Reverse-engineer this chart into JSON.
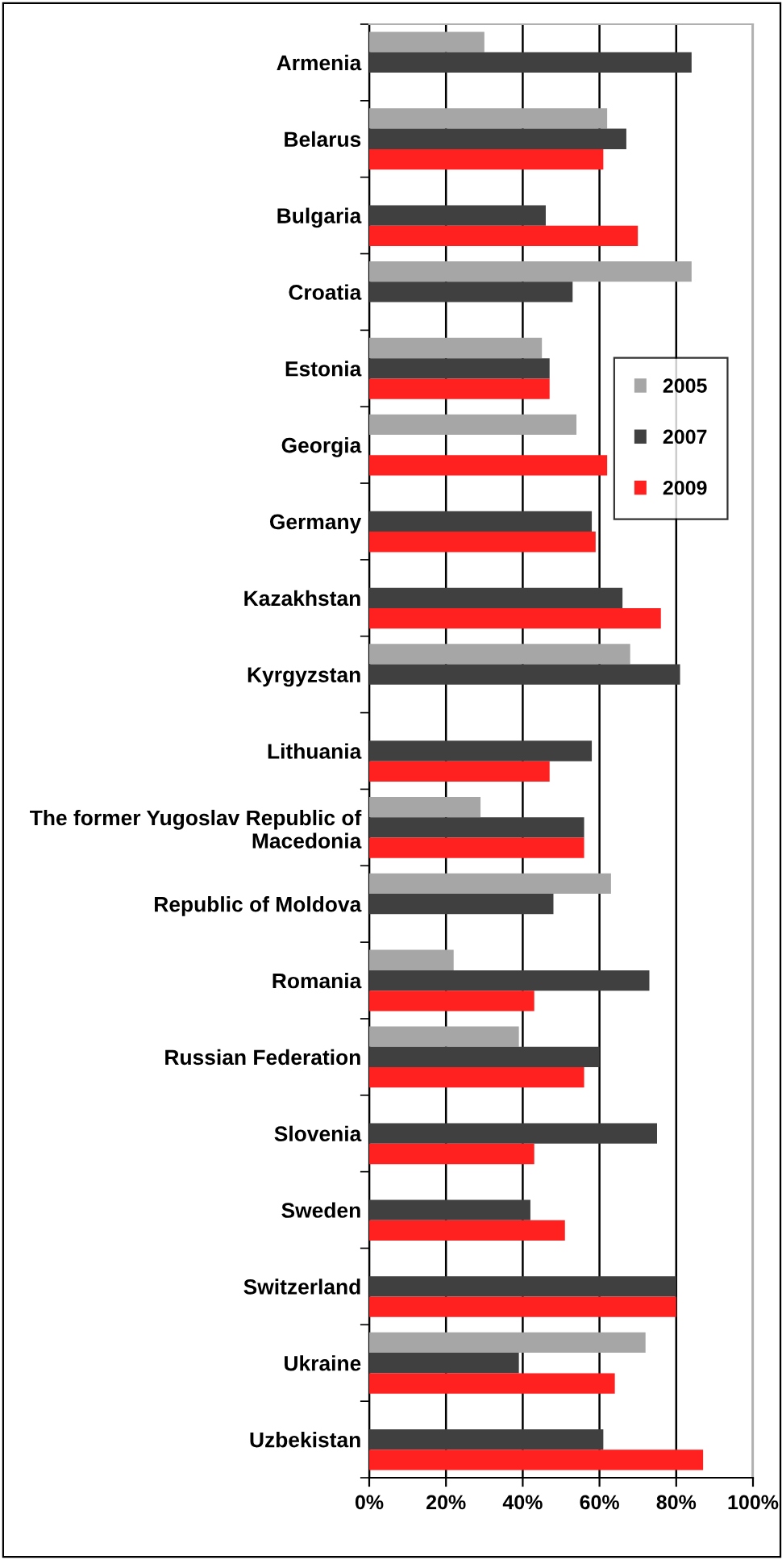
{
  "chart_data": {
    "type": "bar",
    "orientation": "horizontal",
    "categories": [
      "Armenia",
      "Belarus",
      "Bulgaria",
      "Croatia",
      "Estonia",
      "Georgia",
      "Germany",
      "Kazakhstan",
      "Kyrgyzstan",
      "Lithuania",
      "The former Yugoslav Republic of\nMacedonia",
      "Republic of Moldova",
      "Romania",
      "Russian Federation",
      "Slovenia",
      "Sweden",
      "Switzerland",
      "Ukraine",
      "Uzbekistan"
    ],
    "series": [
      {
        "name": "2005",
        "color": "#a6a6a6",
        "values": [
          30,
          62,
          null,
          84,
          45,
          54,
          null,
          null,
          68,
          null,
          29,
          63,
          22,
          39,
          null,
          null,
          null,
          72,
          null
        ]
      },
      {
        "name": "2007",
        "color": "#404040",
        "values": [
          84,
          67,
          46,
          53,
          47,
          null,
          58,
          66,
          81,
          58,
          56,
          48,
          73,
          60,
          75,
          42,
          80,
          39,
          61
        ]
      },
      {
        "name": "2009",
        "color": "#ff2020",
        "values": [
          null,
          61,
          70,
          null,
          47,
          62,
          59,
          76,
          null,
          47,
          56,
          null,
          43,
          56,
          43,
          51,
          80,
          64,
          87
        ]
      }
    ],
    "xlim": [
      0,
      100
    ],
    "xticks": [
      {
        "value": 0,
        "label": "0%"
      },
      {
        "value": 20,
        "label": "20%"
      },
      {
        "value": 40,
        "label": "40%"
      },
      {
        "value": 60,
        "label": "60%"
      },
      {
        "value": 80,
        "label": "80%"
      },
      {
        "value": 100,
        "label": "100%"
      }
    ],
    "grid": "x",
    "legend": "right"
  }
}
